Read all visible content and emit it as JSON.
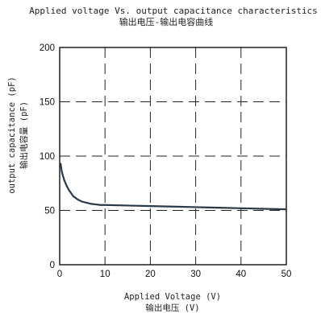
{
  "chart_data": {
    "type": "line",
    "title": "Applied voltage Vs. output capacitance characteristics",
    "subtitle": "输出电压-输出电容曲线",
    "xlabel": "Applied Voltage (V)",
    "xlabel_cn": "输出电压 (V)",
    "ylabel": "output capacitance (pF)",
    "ylabel_cn": "输出电容量 (pF)",
    "xlim": [
      0,
      50
    ],
    "ylim": [
      0,
      200
    ],
    "xticks": [
      "0",
      "10",
      "20",
      "30",
      "40",
      "50"
    ],
    "yticks": [
      "0",
      "50",
      "100",
      "150",
      "200"
    ],
    "xtick_values": [
      0,
      10,
      20,
      30,
      40,
      50
    ],
    "ytick_values": [
      0,
      50,
      100,
      150,
      200
    ],
    "grid": true,
    "series": [
      {
        "x": [
          0.2,
          0.5,
          1,
          1.5,
          2,
          3,
          4,
          5,
          6,
          7,
          8,
          9,
          10,
          15,
          20,
          25,
          30,
          35,
          40,
          45,
          50
        ],
        "y": [
          93,
          85,
          78,
          73,
          69,
          63,
          60,
          58,
          57,
          56,
          55.5,
          55,
          55,
          54.5,
          54,
          53.5,
          53,
          52.5,
          52,
          51.5,
          51
        ]
      }
    ]
  }
}
